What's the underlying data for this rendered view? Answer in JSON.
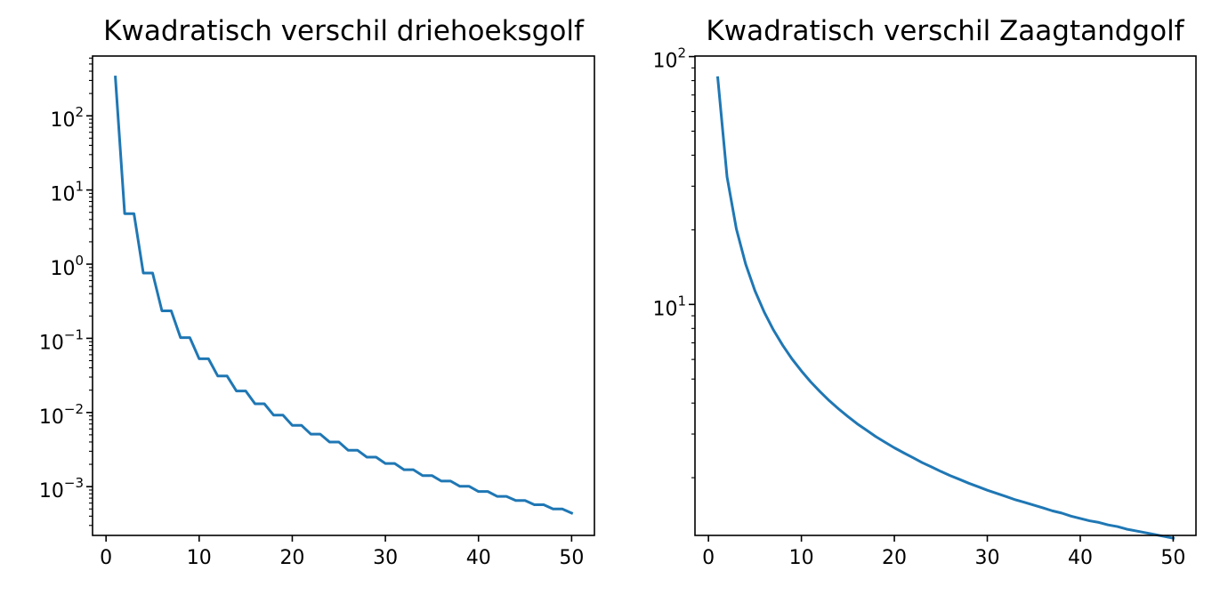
{
  "chart_data": [
    {
      "type": "line",
      "title": "Kwadratisch verschil driehoeksgolf",
      "yscale": "log",
      "xlim": [
        -1.45,
        52.45
      ],
      "ylim": [
        0.00022,
        640
      ],
      "xticks": [
        0,
        10,
        20,
        30,
        40,
        50
      ],
      "yticks": [
        {
          "base": "10",
          "exp": "−3",
          "value": 0.001
        },
        {
          "base": "10",
          "exp": "−2",
          "value": 0.01
        },
        {
          "base": "10",
          "exp": "−1",
          "value": 0.1
        },
        {
          "base": "10",
          "exp": "0",
          "value": 1
        },
        {
          "base": "10",
          "exp": "1",
          "value": 10
        },
        {
          "base": "10",
          "exp": "2",
          "value": 100
        }
      ],
      "color": "#1f77b4",
      "x": [
        1,
        2,
        3,
        4,
        5,
        6,
        7,
        8,
        9,
        10,
        11,
        12,
        13,
        14,
        15,
        16,
        17,
        18,
        19,
        20,
        21,
        22,
        23,
        24,
        25,
        26,
        27,
        28,
        29,
        30,
        31,
        32,
        33,
        34,
        35,
        36,
        37,
        38,
        39,
        40,
        41,
        42,
        43,
        44,
        45,
        46,
        47,
        48,
        49,
        50
      ],
      "y": [
        333,
        4.8,
        4.8,
        0.76,
        0.76,
        0.235,
        0.235,
        0.102,
        0.102,
        0.053,
        0.053,
        0.031,
        0.031,
        0.0195,
        0.0195,
        0.0131,
        0.0131,
        0.0092,
        0.0092,
        0.0067,
        0.0067,
        0.0051,
        0.0051,
        0.004,
        0.004,
        0.0031,
        0.0031,
        0.0025,
        0.0025,
        0.00205,
        0.00205,
        0.00169,
        0.00169,
        0.00141,
        0.00141,
        0.00119,
        0.00119,
        0.00101,
        0.00101,
        0.00086,
        0.00086,
        0.00074,
        0.00074,
        0.00065,
        0.00065,
        0.00057,
        0.00057,
        0.0005,
        0.0005,
        0.00044
      ]
    },
    {
      "type": "line",
      "title": "Kwadratisch verschil Zaagtandgolf",
      "yscale": "log",
      "xlim": [
        -1.45,
        52.45
      ],
      "ylim": [
        1.17,
        100.5
      ],
      "xticks": [
        0,
        10,
        20,
        30,
        40,
        50
      ],
      "yticks": [
        {
          "base": "10",
          "exp": "1",
          "value": 10
        },
        {
          "base": "10",
          "exp": "2",
          "value": 100
        }
      ],
      "color": "#1f77b4",
      "x": [
        1,
        2,
        3,
        4,
        5,
        6,
        7,
        8,
        9,
        10,
        11,
        12,
        13,
        14,
        15,
        16,
        17,
        18,
        19,
        20,
        21,
        22,
        23,
        24,
        25,
        26,
        27,
        28,
        29,
        30,
        31,
        32,
        33,
        34,
        35,
        36,
        37,
        38,
        39,
        40,
        41,
        42,
        43,
        44,
        45,
        46,
        47,
        48,
        49,
        50
      ],
      "y": [
        82.2,
        32.7,
        20.2,
        14.55,
        11.36,
        9.31,
        7.88,
        6.83,
        6.02,
        5.39,
        4.87,
        4.45,
        4.09,
        3.79,
        3.53,
        3.3,
        3.11,
        2.93,
        2.78,
        2.64,
        2.52,
        2.41,
        2.3,
        2.21,
        2.12,
        2.04,
        1.97,
        1.9,
        1.84,
        1.78,
        1.73,
        1.68,
        1.63,
        1.59,
        1.55,
        1.51,
        1.47,
        1.44,
        1.4,
        1.37,
        1.34,
        1.32,
        1.29,
        1.27,
        1.24,
        1.22,
        1.2,
        1.18,
        1.16,
        1.14
      ]
    }
  ]
}
